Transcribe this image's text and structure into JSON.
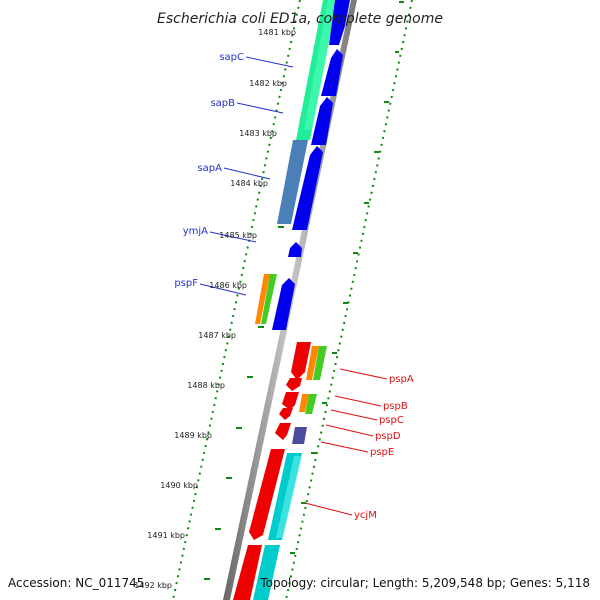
{
  "title": "Escherichia coli ED1a, complete genome",
  "footer": {
    "accession": "Accession: NC_011745",
    "topology": "Topology: circular; Length: 5,209,548 bp; Genes: 5,118"
  },
  "kbp_labels": [
    "1481 kbp",
    "1482 kbp",
    "1483 kbp",
    "1484 kbp",
    "1485 kbp",
    "1486 kbp",
    "1487 kbp",
    "1488 kbp",
    "1489 kbp",
    "1490 kbp",
    "1491 kbp",
    "1492 kbp"
  ],
  "forward_genes": [
    "sapC",
    "sapB",
    "sapA",
    "ymjA",
    "pspF"
  ],
  "reverse_genes": [
    "pspA",
    "pspB",
    "pspC",
    "pspD",
    "pspE",
    "ycjM"
  ],
  "colors": {
    "cds_forward": "#0000ee",
    "cds_reverse": "#ee0000",
    "backbone": "#888888",
    "tick_green": "#118811",
    "label_forward": "#2233cc",
    "label_reverse": "#dd1111"
  }
}
